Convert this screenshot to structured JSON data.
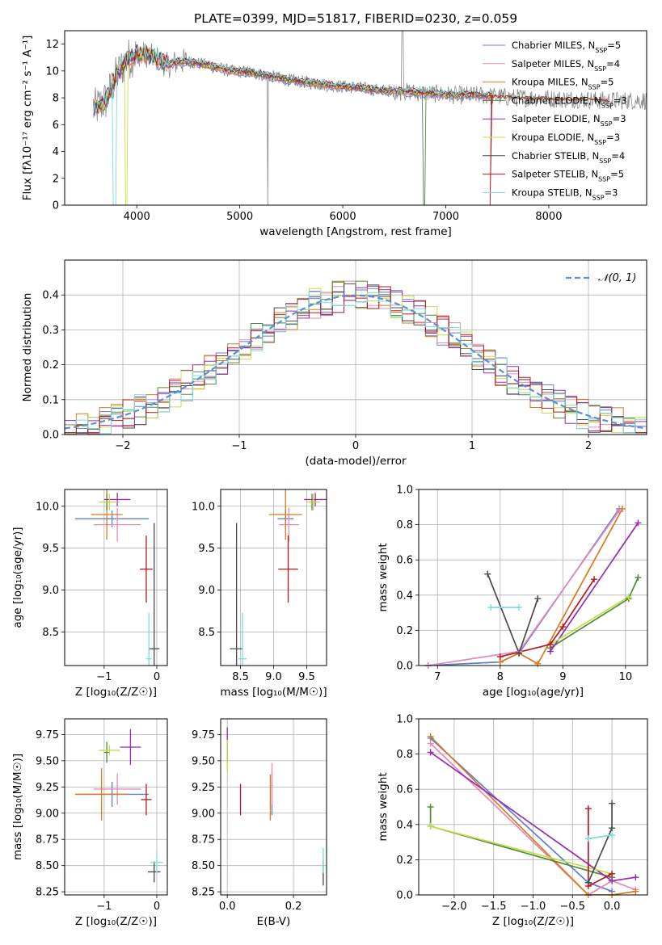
{
  "figure_title": "PLATE=0399, MJD=51817, FIBERID=0230, z=0.059",
  "models": [
    {
      "name": "Chabrier MILES",
      "nssp": "5",
      "color": "#5b7fd4"
    },
    {
      "name": "Salpeter MILES",
      "nssp": "4",
      "color": "#e58ab8"
    },
    {
      "name": "Kroupa MILES",
      "nssp": "5",
      "color": "#d87a1e"
    },
    {
      "name": "Chabrier ELODIE",
      "nssp": "3",
      "color": "#4f8a3a"
    },
    {
      "name": "Salpeter ELODIE",
      "nssp": "3",
      "color": "#9a2bb0"
    },
    {
      "name": "Kroupa ELODIE",
      "nssp": "3",
      "color": "#c6dd4a"
    },
    {
      "name": "Chabrier STELIB",
      "nssp": "4",
      "color": "#4a4a4a"
    },
    {
      "name": "Salpeter STELIB",
      "nssp": "5",
      "color": "#b4181e"
    },
    {
      "name": "Kroupa STELIB",
      "nssp": "3",
      "color": "#7adcdc"
    }
  ],
  "chart_data": [
    {
      "type": "line",
      "panel": "spectrum",
      "xlabel": "wavelength [Angstrom, rest frame]",
      "ylabel": "Flux [fλ10⁻¹⁷ erg cm⁻² s⁻¹ A⁻¹]",
      "xlim": [
        3300,
        8950
      ],
      "ylim": [
        0,
        13
      ],
      "xticks": [
        "4000",
        "5000",
        "6000",
        "7000",
        "8000"
      ],
      "yticks": [
        "0",
        "2",
        "4",
        "6",
        "8",
        "10",
        "12"
      ],
      "data_color": "#888888",
      "x": [
        3600,
        3700,
        3800,
        3900,
        4000,
        4100,
        4200,
        4300,
        4400,
        4500,
        4700,
        4900,
        5100,
        5300,
        5500,
        5700,
        5900,
        6100,
        6300,
        6500,
        6700,
        6900,
        7100,
        7300,
        7500,
        7700,
        7900,
        8100,
        8300,
        8500
      ],
      "model_y": [
        7.2,
        7.8,
        9.6,
        10.8,
        11.3,
        11.2,
        10.9,
        10.4,
        10.7,
        10.7,
        10.4,
        10.0,
        9.9,
        9.6,
        9.3,
        9.1,
        8.9,
        8.8,
        8.6,
        8.5,
        8.4,
        8.3,
        8.2,
        8.2,
        8.1,
        8.0,
        8.0,
        7.9,
        7.9,
        7.8
      ],
      "grid": false,
      "legend": "top-right"
    },
    {
      "type": "step",
      "panel": "residuals",
      "xlabel": "(data-model)/error",
      "ylabel": "Normed distribution",
      "xlim": [
        -2.5,
        2.5
      ],
      "ylim": [
        0,
        0.5
      ],
      "xticks": [
        "−2",
        "−1",
        "0",
        "1",
        "2"
      ],
      "yticks": [
        "0.0",
        "0.1",
        "0.2",
        "0.3",
        "0.4"
      ],
      "normal_label": "𝒩(0, 1)",
      "normal_color": "#5b8fd6",
      "grid": true,
      "legend": "top-right"
    },
    {
      "type": "errorbar",
      "panel": "age-vs-Z",
      "xlabel": "Z [log₁₀(Z/Z☉)]",
      "ylabel": "age  [log₁₀(age/yr)]",
      "xlim": [
        -1.75,
        0.2
      ],
      "ylim": [
        8.1,
        10.2
      ],
      "xticks": [
        "−1",
        "0"
      ],
      "yticks": [
        "8.5",
        "9.0",
        "9.5",
        "10.0"
      ],
      "points": [
        {
          "model": 0,
          "x": -0.85,
          "xerr": 0.7,
          "y": 9.85,
          "yerr": 0.1
        },
        {
          "model": 1,
          "x": -0.75,
          "xerr": 0.45,
          "y": 9.78,
          "yerr": 0.2
        },
        {
          "model": 2,
          "x": -0.95,
          "xerr": 0.3,
          "y": 9.9,
          "yerr": 0.3
        },
        {
          "model": 3,
          "x": -0.95,
          "xerr": 0.05,
          "y": 10.05,
          "yerr": 0.1
        },
        {
          "model": 4,
          "x": -0.75,
          "xerr": 0.25,
          "y": 10.08,
          "yerr": 0.08
        },
        {
          "model": 5,
          "x": -0.9,
          "xerr": 0.2,
          "y": 10.05,
          "yerr": 0.1
        },
        {
          "model": 6,
          "x": -0.05,
          "xerr": 0.1,
          "y": 8.3,
          "yerr": 1.5
        },
        {
          "model": 7,
          "x": -0.2,
          "xerr": 0.12,
          "y": 9.25,
          "yerr": 0.4
        },
        {
          "model": 8,
          "x": -0.15,
          "xerr": 0.05,
          "y": 8.18,
          "yerr": 0.55
        }
      ]
    },
    {
      "type": "errorbar",
      "panel": "age-vs-mass",
      "xlabel": "mass [log₁₀(M/M☉)]",
      "ylabel": "",
      "xlim": [
        8.2,
        9.8
      ],
      "ylim": [
        8.1,
        10.2
      ],
      "xticks": [
        "8.5",
        "9.0",
        "9.5"
      ],
      "yticks": [
        "8.5",
        "9.0",
        "9.5",
        "10.0"
      ],
      "points": [
        {
          "model": 0,
          "x": 9.18,
          "xerr": 0.12,
          "y": 9.85,
          "yerr": 0.1
        },
        {
          "model": 1,
          "x": 9.23,
          "xerr": 0.15,
          "y": 9.78,
          "yerr": 0.2
        },
        {
          "model": 2,
          "x": 9.18,
          "xerr": 0.25,
          "y": 9.9,
          "yerr": 0.3
        },
        {
          "model": 3,
          "x": 9.58,
          "xerr": 0.05,
          "y": 10.05,
          "yerr": 0.1
        },
        {
          "model": 4,
          "x": 9.63,
          "xerr": 0.17,
          "y": 10.08,
          "yerr": 0.08
        },
        {
          "model": 5,
          "x": 9.6,
          "xerr": 0.1,
          "y": 10.05,
          "yerr": 0.1
        },
        {
          "model": 6,
          "x": 8.44,
          "xerr": 0.1,
          "y": 8.3,
          "yerr": 1.5
        },
        {
          "model": 7,
          "x": 9.22,
          "xerr": 0.15,
          "y": 9.25,
          "yerr": 0.4
        },
        {
          "model": 8,
          "x": 8.53,
          "xerr": 0.06,
          "y": 8.18,
          "yerr": 0.55
        }
      ]
    },
    {
      "type": "line",
      "panel": "weight-vs-age",
      "xlabel": "age  [log₁₀(age/yr)]",
      "ylabel": "mass weight",
      "xlim": [
        6.7,
        10.35
      ],
      "ylim": [
        0,
        1
      ],
      "xticks": [
        "7",
        "8",
        "9",
        "10"
      ],
      "yticks": [
        "0.0",
        "0.2",
        "0.4",
        "0.6",
        "0.8",
        "1.0"
      ],
      "grid": true,
      "series": [
        {
          "model": 0,
          "x": [
            6.85,
            8.0,
            8.3,
            9.9
          ],
          "y": [
            0.0,
            0.02,
            0.07,
            0.89
          ]
        },
        {
          "model": 1,
          "x": [
            6.85,
            8.3,
            9.9
          ],
          "y": [
            0.0,
            0.08,
            0.88
          ]
        },
        {
          "model": 2,
          "x": [
            8.0,
            8.3,
            8.6,
            9.95
          ],
          "y": [
            0.02,
            0.07,
            0.01,
            0.89
          ]
        },
        {
          "model": 3,
          "x": [
            8.8,
            10.05,
            10.2
          ],
          "y": [
            0.1,
            0.38,
            0.5
          ]
        },
        {
          "model": 4,
          "x": [
            8.8,
            10.2
          ],
          "y": [
            0.08,
            0.81
          ]
        },
        {
          "model": 5,
          "x": [
            8.8,
            10.05
          ],
          "y": [
            0.12,
            0.39
          ]
        },
        {
          "model": 6,
          "x": [
            7.8,
            8.3,
            8.6
          ],
          "y": [
            0.52,
            0.07,
            0.38
          ]
        },
        {
          "model": 7,
          "x": [
            8.0,
            8.8,
            9.0,
            9.5
          ],
          "y": [
            0.05,
            0.12,
            0.22,
            0.49
          ]
        },
        {
          "model": 8,
          "x": [
            7.85,
            8.3
          ],
          "y": [
            0.33,
            0.33
          ]
        }
      ]
    },
    {
      "type": "errorbar",
      "panel": "mass-vs-Z",
      "xlabel": "Z [log₁₀(Z/Z☉)]",
      "ylabel": "mass [log₁₀(M/M☉)]",
      "xlim": [
        -1.75,
        0.2
      ],
      "ylim": [
        8.22,
        9.9
      ],
      "xticks": [
        "−1",
        "0"
      ],
      "yticks": [
        "8.25",
        "8.50",
        "8.75",
        "9.00",
        "9.25",
        "9.50",
        "9.75"
      ],
      "points": [
        {
          "model": 0,
          "x": -0.85,
          "xerr": 0.7,
          "y": 9.18,
          "yerr": 0.12
        },
        {
          "model": 1,
          "x": -0.75,
          "xerr": 0.45,
          "y": 9.23,
          "yerr": 0.15
        },
        {
          "model": 2,
          "x": -1.05,
          "xerr": 0.5,
          "y": 9.18,
          "yerr": 0.25
        },
        {
          "model": 3,
          "x": -0.95,
          "xerr": 0.05,
          "y": 9.58,
          "yerr": 0.1
        },
        {
          "model": 4,
          "x": -0.5,
          "xerr": 0.2,
          "y": 9.63,
          "yerr": 0.17
        },
        {
          "model": 5,
          "x": -0.9,
          "xerr": 0.2,
          "y": 9.6,
          "yerr": 0.05
        },
        {
          "model": 6,
          "x": -0.05,
          "xerr": 0.12,
          "y": 8.44,
          "yerr": 0.1
        },
        {
          "model": 7,
          "x": -0.2,
          "xerr": 0.1,
          "y": 9.13,
          "yerr": 0.15
        },
        {
          "model": 8,
          "x": 0.0,
          "xerr": 0.12,
          "y": 8.53,
          "yerr": 0.1
        }
      ]
    },
    {
      "type": "errorbar",
      "panel": "mass-vs-EBV",
      "xlabel": "E(B-V)",
      "ylabel": "",
      "xlim": [
        -0.02,
        0.3
      ],
      "ylim": [
        8.22,
        9.9
      ],
      "xticks": [
        "0.0",
        "0.2"
      ],
      "yticks": [
        "8.25",
        "8.50",
        "8.75",
        "9.00",
        "9.25",
        "9.50",
        "9.75"
      ],
      "points": [
        {
          "model": 0,
          "x": 0.135,
          "xerr": 0,
          "y": 9.18,
          "yerr": 0.2
        },
        {
          "model": 1,
          "x": 0.135,
          "xerr": 0,
          "y": 9.28,
          "yerr": 0.2
        },
        {
          "model": 2,
          "x": 0.13,
          "xerr": 0,
          "y": 9.15,
          "yerr": 0.22
        },
        {
          "model": 3,
          "x": 0.0,
          "xerr": 0,
          "y": 9.58,
          "yerr": 0.1
        },
        {
          "model": 4,
          "x": 0.0,
          "xerr": 0,
          "y": 9.7,
          "yerr": 0.12
        },
        {
          "model": 5,
          "x": 0.0,
          "xerr": 0,
          "y": 9.55,
          "yerr": 0.15
        },
        {
          "model": 6,
          "x": 0.29,
          "xerr": 0,
          "y": 8.43,
          "yerr": 0.12
        },
        {
          "model": 7,
          "x": 0.04,
          "xerr": 0,
          "y": 9.13,
          "yerr": 0.15
        },
        {
          "model": 8,
          "x": 0.29,
          "xerr": 0,
          "y": 8.55,
          "yerr": 0.12
        }
      ]
    },
    {
      "type": "line",
      "panel": "weight-vs-Z",
      "xlabel": "Z [log₁₀(Z/Z☉)]",
      "ylabel": "mass weight",
      "xlim": [
        -2.45,
        0.45
      ],
      "ylim": [
        0,
        1
      ],
      "xticks": [
        "−2.0",
        "−1.5",
        "−1.0",
        "−0.5",
        "0.0"
      ],
      "yticks": [
        "0.0",
        "0.2",
        "0.4",
        "0.6",
        "0.8",
        "1.0"
      ],
      "grid": true,
      "series": [
        {
          "model": 0,
          "x": [
            -2.3,
            -0.3,
            0.0
          ],
          "y": [
            0.89,
            0.07,
            0.02
          ]
        },
        {
          "model": 1,
          "x": [
            -2.3,
            -0.3,
            0.0,
            0.3
          ],
          "y": [
            0.86,
            0.0,
            0.08,
            0.03
          ]
        },
        {
          "model": 2,
          "x": [
            -2.3,
            -0.3,
            0.0,
            0.3
          ],
          "y": [
            0.9,
            0.0,
            0.0,
            0.02
          ]
        },
        {
          "model": 3,
          "x": [
            -2.3,
            -2.3,
            0.0
          ],
          "y": [
            0.5,
            0.39,
            0.1
          ]
        },
        {
          "model": 4,
          "x": [
            -2.3,
            0.0,
            0.3
          ],
          "y": [
            0.81,
            0.08,
            0.1
          ]
        },
        {
          "model": 5,
          "x": [
            -2.3,
            0.0
          ],
          "y": [
            0.39,
            0.12
          ]
        },
        {
          "model": 6,
          "x": [
            -0.3,
            0.0,
            0.0
          ],
          "y": [
            0.07,
            0.38,
            0.52
          ]
        },
        {
          "model": 7,
          "x": [
            -0.3,
            -0.3,
            0.0
          ],
          "y": [
            0.49,
            0.05,
            0.12
          ]
        },
        {
          "model": 8,
          "x": [
            -0.3,
            0.0
          ],
          "y": [
            0.32,
            0.34
          ]
        }
      ]
    }
  ]
}
